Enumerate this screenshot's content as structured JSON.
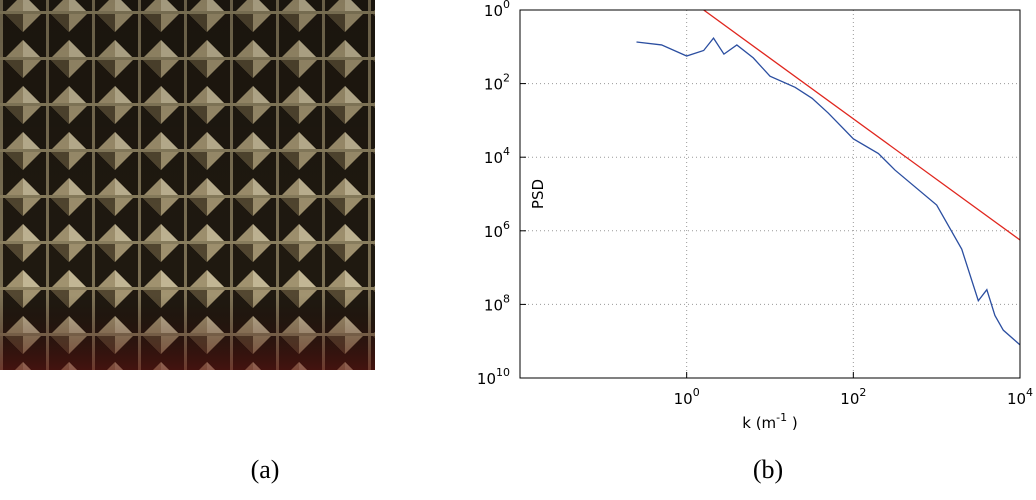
{
  "captions": {
    "a": "(a)",
    "b": "(b)"
  },
  "chart_data": {
    "type": "line",
    "log_x": true,
    "log_y": true,
    "grid": true,
    "ylabel": "PSD",
    "xlabel": "k (m",
    "xlabel_exponent": "-1",
    "xlabel_end": " )",
    "xlim": [
      0.01,
      10000
    ],
    "ylim": [
      10000000000,
      1
    ],
    "xticks": [
      {
        "value": 1,
        "label": "10",
        "exponent": "0"
      },
      {
        "value": 100,
        "label": "10",
        "exponent": "2"
      },
      {
        "value": 10000,
        "label": "10",
        "exponent": "4"
      }
    ],
    "yticks": [
      {
        "value": 1,
        "label": "10",
        "exponent": "0"
      },
      {
        "value": 100,
        "label": "10",
        "exponent": "2"
      },
      {
        "value": 10000,
        "label": "10",
        "exponent": "4"
      },
      {
        "value": 1000000,
        "label": "10",
        "exponent": "6"
      },
      {
        "value": 100000000,
        "label": "10",
        "exponent": "8"
      },
      {
        "value": 10000000000,
        "label": "10",
        "exponent": "10"
      }
    ],
    "series": [
      {
        "color": "#2b4ea0",
        "x": [
          0.25,
          0.5,
          1,
          1.6,
          2.1,
          2.8,
          4,
          6.3,
          10,
          20,
          32,
          50,
          100,
          200,
          316,
          1000,
          2000,
          3160,
          4000,
          5000,
          6300,
          10000
        ],
        "values": [
          7.4,
          8.9,
          17.8,
          12.6,
          5.8,
          15.8,
          8.9,
          20,
          63,
          126,
          251,
          631,
          3162,
          7943,
          22387,
          199526,
          3162278,
          79432823,
          39810717,
          199526231,
          501187234,
          1258925412
        ]
      },
      {
        "color": "#e0261e",
        "x": [
          1.6,
          10000
        ],
        "values": [
          1,
          1780000
        ]
      }
    ]
  }
}
